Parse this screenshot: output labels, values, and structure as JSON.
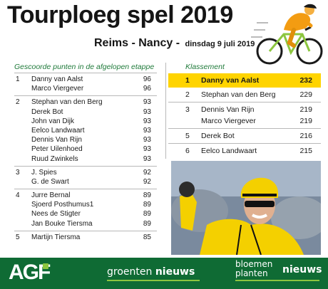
{
  "header": {
    "title": "Tourploeg spel 2019",
    "route": "Reims - Nancy -",
    "date": "dinsdag 9 juli 2019"
  },
  "stage_points": {
    "heading": "Gescoorde punten in de afgelopen etappe",
    "groups": [
      {
        "position": "1",
        "riders": [
          {
            "name": "Danny van Aalst",
            "points": "96"
          },
          {
            "name": "Marco Viergever",
            "points": "96"
          }
        ]
      },
      {
        "position": "2",
        "riders": [
          {
            "name": "Stephan van den Berg",
            "points": "93"
          },
          {
            "name": "Derek Bot",
            "points": "93"
          },
          {
            "name": "John van Dijk",
            "points": "93"
          },
          {
            "name": "Eelco Landwaart",
            "points": "93"
          },
          {
            "name": "Dennis Van Rijn",
            "points": "93"
          },
          {
            "name": "Peter Uilenhoed",
            "points": "93"
          },
          {
            "name": "Ruud Zwinkels",
            "points": "93"
          }
        ]
      },
      {
        "position": "3",
        "riders": [
          {
            "name": "J. Spies",
            "points": "92"
          },
          {
            "name": "G. de Swart",
            "points": "92"
          }
        ]
      },
      {
        "position": "4",
        "riders": [
          {
            "name": "Jurre Bernal",
            "points": "89"
          },
          {
            "name": "Sjoerd Posthumus1",
            "points": "89"
          },
          {
            "name": "Nees de Stigter",
            "points": "89"
          },
          {
            "name": "Jan Bouke Tiersma",
            "points": "89"
          }
        ]
      },
      {
        "position": "5",
        "riders": [
          {
            "name": "Martijn Tiersma",
            "points": "85"
          }
        ]
      }
    ]
  },
  "standings": {
    "heading": "Klassement",
    "groups": [
      {
        "position": "1",
        "leader": true,
        "riders": [
          {
            "name": "Danny van Aalst",
            "points": "232"
          }
        ]
      },
      {
        "position": "2",
        "riders": [
          {
            "name": "Stephan van den Berg",
            "points": "229"
          }
        ]
      },
      {
        "position": "3",
        "riders": [
          {
            "name": "Dennis Van Rijn",
            "points": "219"
          },
          {
            "name": "Marco Viergever",
            "points": "219"
          }
        ]
      },
      {
        "position": "5",
        "riders": [
          {
            "name": "Derek Bot",
            "points": "216"
          }
        ]
      },
      {
        "position": "6",
        "riders": [
          {
            "name": "Eelco Landwaart",
            "points": "215"
          }
        ]
      }
    ]
  },
  "footer": {
    "agf_logo": "AGF",
    "groenten_word": "groenten",
    "groenten_nieuws": "nieuws",
    "bloemen_line1": "bloemen",
    "bloemen_line2": "planten",
    "bloemen_nieuws": "nieuws"
  },
  "colors": {
    "accent_green": "#1f7a3a",
    "leader_yellow": "#ffd400",
    "footer_green": "#0f6b34",
    "lime": "#8cc63f"
  },
  "icons": {
    "cyclist": "cyclist-illustration-icon",
    "photo": "rider-in-yellow-jersey-photo"
  }
}
